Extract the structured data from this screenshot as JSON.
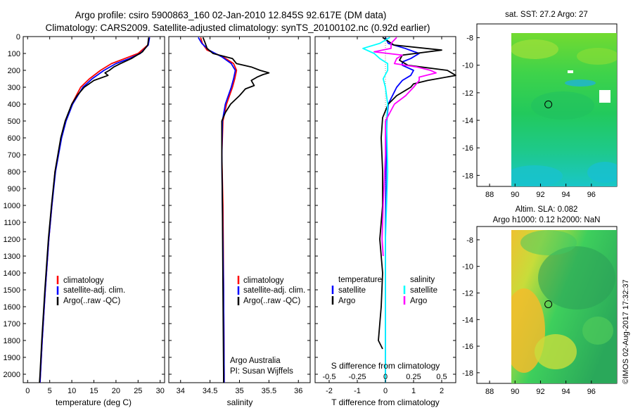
{
  "title": {
    "line1": "Argo profile: csiro 5900863_160 02-Jan-2010 12.845S 92.617E (DM data)",
    "line2": "Climatology: CARS2009. Satellite-adjusted climatology: synTS_20100102.nc (0.92d earlier)"
  },
  "depth_ticks": [
    "0",
    "100",
    "200",
    "300",
    "400",
    "500",
    "600",
    "700",
    "800",
    "900",
    "1000",
    "1100",
    "1200",
    "1300",
    "1400",
    "1500",
    "1600",
    "1700",
    "1800",
    "1900",
    "2000"
  ],
  "colors": {
    "climatology": "#ff0000",
    "satellite": "#0000ff",
    "argo": "#000000",
    "s_satellite": "#00ffff",
    "s_argo": "#ff00ff"
  },
  "chart_data": [
    {
      "type": "line",
      "name": "temperature",
      "xlabel": "temperature (deg C)",
      "xlim": [
        -1,
        31
      ],
      "xticks": [
        0,
        5,
        10,
        15,
        20,
        25,
        30
      ],
      "ylim": [
        0,
        2050
      ],
      "legend": [
        "climatology",
        "satellite-adj. clim.",
        "Argo(..raw -QC)"
      ],
      "series": [
        {
          "name": "climatology",
          "depth": [
            5,
            50,
            100,
            130,
            160,
            200,
            250,
            300,
            400,
            500,
            600,
            800,
            1000,
            1200,
            1500,
            1800,
            2000,
            2050
          ],
          "values": [
            27.6,
            27.2,
            25,
            22,
            19,
            16.5,
            14,
            12,
            10,
            8.6,
            7.6,
            6.2,
            5.5,
            4.8,
            4.0,
            3.3,
            2.9,
            2.8
          ]
        },
        {
          "name": "satellite-adj. clim.",
          "depth": [
            5,
            50,
            100,
            130,
            160,
            200,
            250,
            300,
            400,
            500,
            600,
            800,
            1000,
            1200,
            1500,
            1800,
            2000,
            2050
          ],
          "values": [
            27.6,
            27.3,
            25.5,
            23,
            20,
            17.3,
            14.6,
            12.5,
            10.2,
            8.7,
            7.7,
            6.3,
            5.5,
            4.8,
            4.0,
            3.3,
            2.9,
            2.8
          ]
        },
        {
          "name": "Argo(..raw -QC)",
          "depth": [
            5,
            50,
            90,
            130,
            160,
            180,
            200,
            215,
            230,
            260,
            300,
            350,
            400,
            500,
            600,
            800,
            1000,
            1200,
            1500,
            1800,
            2000,
            2050
          ],
          "values": [
            27.4,
            27.2,
            26,
            23.5,
            21,
            19.5,
            18.5,
            17.5,
            18.2,
            15,
            12.8,
            11.2,
            10,
            8.5,
            7.5,
            6.2,
            5.4,
            4.7,
            3.9,
            3.2,
            2.8,
            2.7
          ]
        }
      ]
    },
    {
      "type": "line",
      "name": "salinity",
      "xlabel": "salinity",
      "xlim": [
        33.8,
        36.2
      ],
      "xticks": [
        34,
        34.5,
        35,
        35.5,
        36
      ],
      "ylim": [
        0,
        2050
      ],
      "legend": [
        "climatology",
        "satellite-adj. clim.",
        "Argo(..raw -QC)"
      ],
      "annotation": [
        "Argo Australia",
        "PI: Susan Wijffels"
      ],
      "series": [
        {
          "name": "climatology",
          "depth": [
            5,
            40,
            80,
            120,
            160,
            200,
            250,
            300,
            400,
            500,
            700,
            1000,
            1500,
            2000,
            2050
          ],
          "values": [
            34.34,
            34.37,
            34.45,
            34.72,
            34.9,
            34.95,
            34.92,
            34.88,
            34.78,
            34.72,
            34.7,
            34.72,
            34.73,
            34.74,
            34.74
          ]
        },
        {
          "name": "satellite-adj. clim.",
          "depth": [
            5,
            40,
            80,
            120,
            160,
            200,
            250,
            300,
            400,
            500,
            700,
            1000,
            1500,
            2000,
            2050
          ],
          "values": [
            34.3,
            34.36,
            34.48,
            34.7,
            34.86,
            34.93,
            34.9,
            34.86,
            34.76,
            34.71,
            34.7,
            34.71,
            34.73,
            34.74,
            34.74
          ]
        },
        {
          "name": "Argo(..raw -QC)",
          "depth": [
            5,
            40,
            70,
            100,
            130,
            160,
            180,
            200,
            215,
            225,
            240,
            260,
            290,
            310,
            350,
            400,
            450,
            500,
            700,
            1000,
            1500,
            2000,
            2050
          ],
          "values": [
            34.38,
            34.42,
            34.45,
            34.55,
            34.88,
            34.95,
            35.2,
            35.35,
            35.5,
            35.4,
            35.3,
            35.2,
            35.25,
            35.1,
            35.0,
            34.85,
            34.76,
            34.7,
            34.7,
            34.71,
            34.72,
            34.73,
            34.73
          ]
        }
      ]
    },
    {
      "type": "line",
      "name": "difference",
      "xlabel": "T difference from climatology",
      "xlabel_top": "S difference from climatology",
      "xlim": [
        -2.5,
        2.5
      ],
      "xticks": [
        -2,
        -1,
        0,
        1,
        2
      ],
      "s_ticks": [
        "-0.5",
        "-0.25",
        "0",
        "0.25",
        "0.5"
      ],
      "ylim": [
        0,
        2050
      ],
      "legend_temperature_title": "temperature",
      "legend_salinity_title": "salinity",
      "legend_labels": [
        "satellite",
        "Argo"
      ],
      "series": [
        {
          "name": "T satellite",
          "depth": [
            5,
            40,
            70,
            100,
            130,
            150,
            170,
            200,
            230,
            260,
            300,
            400,
            500,
            800,
            1200,
            2000,
            2050
          ],
          "values": [
            0,
            0.1,
            0.7,
            1.2,
            0.9,
            0.6,
            0.6,
            1.0,
            0.9,
            0.6,
            0.4,
            0.1,
            0.05,
            0.02,
            0,
            0,
            0
          ]
        },
        {
          "name": "T Argo",
          "depth": [
            5,
            50,
            80,
            110,
            140,
            170,
            200,
            230,
            260,
            280,
            300,
            350,
            400,
            480,
            600,
            800,
            1000,
            1200,
            1400,
            1600,
            1800,
            1850
          ],
          "values": [
            -0.1,
            0.3,
            2.0,
            0.6,
            0.5,
            0.8,
            2.2,
            2.5,
            1.5,
            1.0,
            0.9,
            0.4,
            0.1,
            -0.1,
            -0.15,
            -0.1,
            -0.1,
            -0.2,
            -0.1,
            -0.15,
            -0.25,
            -0.1
          ]
        },
        {
          "name": "S satellite",
          "depth": [
            5,
            40,
            70,
            100,
            130,
            160,
            200,
            250,
            300,
            400,
            500,
            800,
            1200,
            1600,
            2000,
            2050
          ],
          "values": [
            0.04,
            -0.05,
            -0.2,
            -0.1,
            -0.05,
            0.02,
            0.02,
            -0.02,
            0,
            0.02,
            0.01,
            0.02,
            0,
            0,
            0,
            0
          ]
        },
        {
          "name": "S Argo",
          "depth": [
            5,
            40,
            70,
            90,
            110,
            130,
            160,
            180,
            200,
            215,
            240,
            260,
            300,
            350,
            400,
            450,
            500,
            700,
            1000,
            1200,
            1300
          ],
          "values": [
            0.1,
            0.05,
            0.05,
            -0.1,
            0.15,
            0.1,
            0.08,
            0.28,
            0.4,
            0.45,
            0.3,
            0.3,
            0.25,
            0.18,
            0.08,
            0.04,
            0,
            0,
            -0.02,
            -0.03,
            -0.02
          ]
        }
      ]
    },
    {
      "type": "heatmap",
      "name": "sst_map",
      "title": "sat. SST: 27.2  Argo: 27",
      "xlim": [
        87,
        98
      ],
      "ylim": [
        -18.8,
        -7
      ],
      "xticks": [
        "88",
        "90",
        "92",
        "94",
        "96"
      ],
      "yticks": [
        "-8",
        "-10",
        "-12",
        "-14",
        "-16",
        "-18"
      ],
      "marker": [
        92.617,
        -12.845
      ]
    },
    {
      "type": "heatmap",
      "name": "sla_map",
      "title_line1": "Altim. SLA: 0.082",
      "title_line2": "Argo h1000: 0.12  h2000: NaN",
      "xlim": [
        87,
        98
      ],
      "ylim": [
        -18.8,
        -7
      ],
      "xticks": [
        "88",
        "90",
        "92",
        "94",
        "96"
      ],
      "yticks": [
        "-8",
        "-10",
        "-12",
        "-14",
        "-16",
        "-18"
      ],
      "marker": [
        92.617,
        -12.845
      ]
    }
  ],
  "side_label": "©IMOS 02-Aug-2017 17:32:37"
}
